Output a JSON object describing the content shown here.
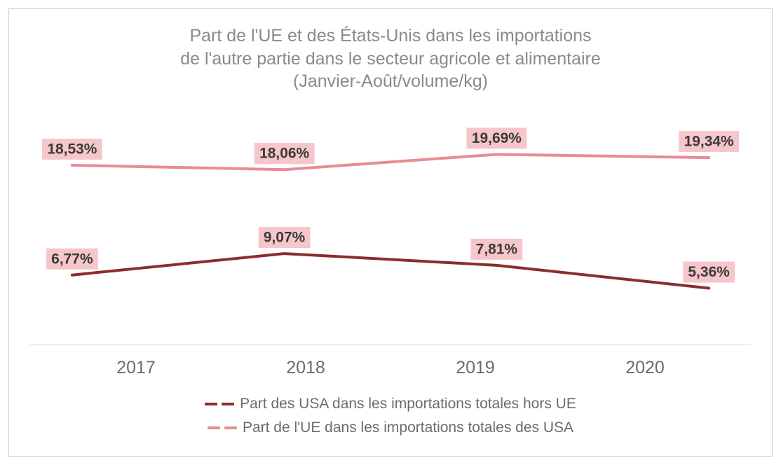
{
  "chart": {
    "type": "line",
    "title_line1": "Part de l'UE et des États-Unis dans les importations",
    "title_line2": "de l'autre partie dans le secteur agricole et alimentaire",
    "title_line3": "(Janvier-Août/volume/kg)",
    "title_fontsize": 25,
    "title_color": "#8a8a8a",
    "background_color": "#ffffff",
    "border_color": "#d0d0d0",
    "categories": [
      "2017",
      "2018",
      "2019",
      "2020"
    ],
    "x_tick_fontsize": 25,
    "x_tick_color": "#6b6b6b",
    "x_baseline_color": "#d9d9d9",
    "ylim": [
      0,
      24
    ],
    "line_width": 4,
    "label_bg": "#f6c6cb",
    "label_fontsize": 21,
    "label_fontweight": 600,
    "label_text_color": "#3a3a3a",
    "series": [
      {
        "id": "ue_in_usa",
        "name": "Part de l'UE dans les importations totales des USA",
        "color": "#e98b93",
        "values": [
          18.53,
          18.06,
          19.69,
          19.34
        ],
        "labels": [
          "18,53%",
          "18,06%",
          "19,69%",
          "19,34%"
        ]
      },
      {
        "id": "usa_in_ue",
        "name": "Part des USA dans les importations totales hors UE",
        "color": "#8a2d2f",
        "values": [
          6.77,
          9.07,
          7.81,
          5.36
        ],
        "labels": [
          "6,77%",
          "9,07%",
          "7,81%",
          "5,36%"
        ]
      }
    ],
    "legend_order": [
      "usa_in_ue",
      "ue_in_usa"
    ],
    "legend_fontsize": 21,
    "legend_text_color": "#6b6b6b"
  }
}
